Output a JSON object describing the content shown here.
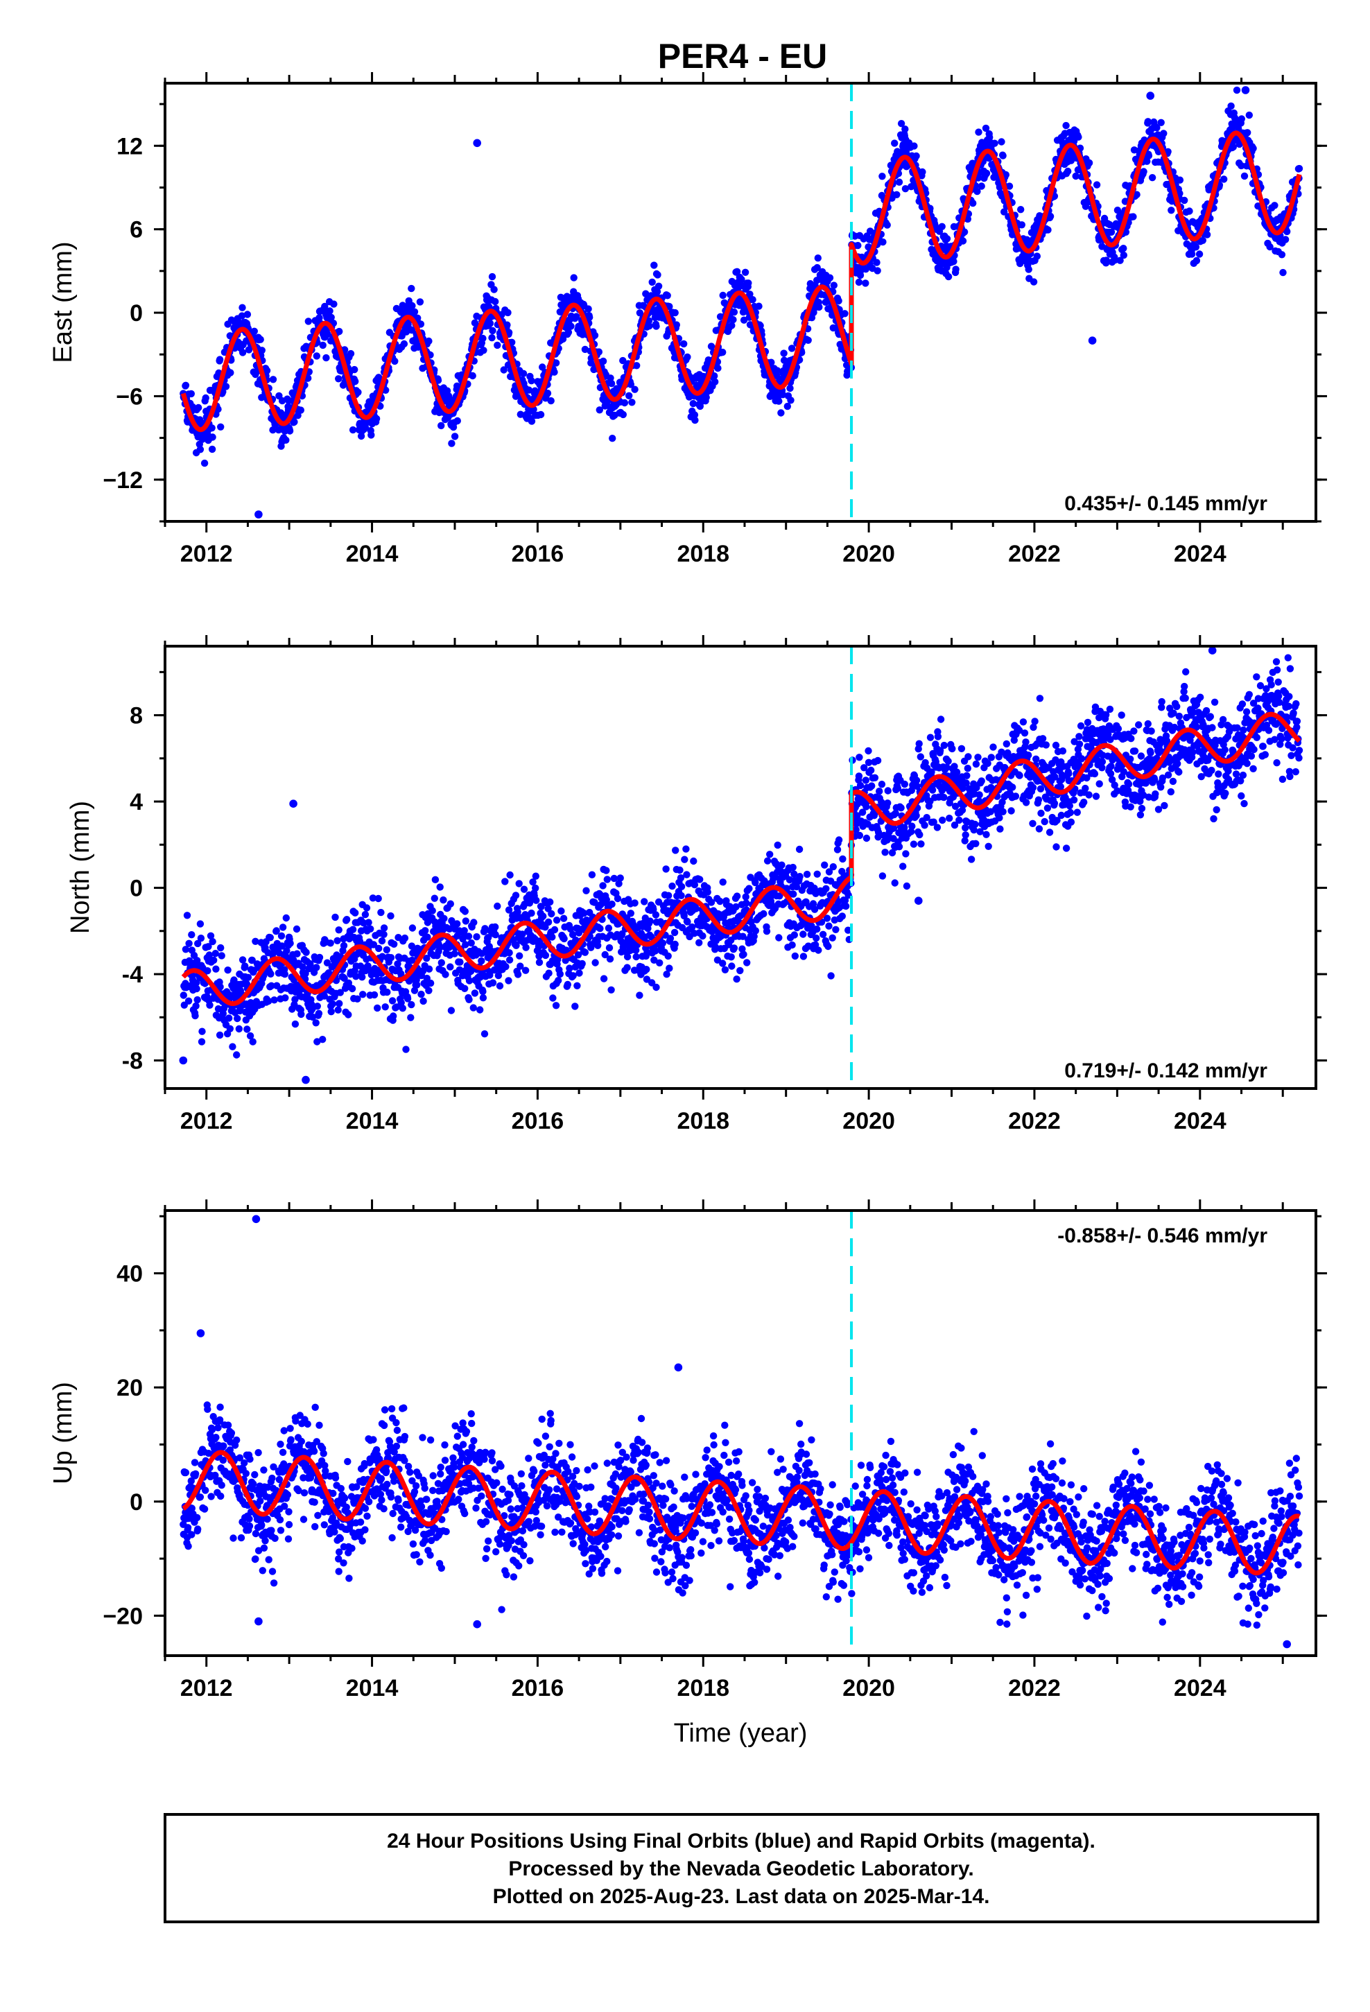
{
  "title": "PER4 - EU",
  "footer": {
    "lines": [
      "24 Hour Positions Using Final Orbits (blue) and Rapid Orbits (magenta).",
      "Processed by the Nevada Geodetic Laboratory.",
      "Plotted on 2025-Aug-23. Last data on 2025-Mar-14."
    ]
  },
  "colors": {
    "points": "#0000ff",
    "model": "#ff0000",
    "offset_line": "#00e5ee",
    "frame": "#000000"
  },
  "chart_data": [
    {
      "type": "scatter",
      "component": "East",
      "ylabel": "East (mm)",
      "xlabel": "",
      "xlim": [
        2011.5,
        2025.4
      ],
      "ylim": [
        -15,
        16.5
      ],
      "xticks": [
        2012,
        2014,
        2016,
        2018,
        2020,
        2022,
        2024
      ],
      "yticks": [
        -12,
        -6,
        0,
        6,
        12
      ],
      "ytick_labels": [
        "−12",
        "−6",
        "0",
        "6",
        "12"
      ],
      "rate": "0.435+/- 0.145 mm/yr",
      "rate_position": "bottom-right",
      "offset_epoch": 2019.79,
      "data_start": 2011.72,
      "data_end": 2025.2,
      "model": {
        "segments": [
          {
            "start": 2011.72,
            "end": 2019.79,
            "baseline_at_start": -5.0,
            "slope": 0.435,
            "amplitude": 3.5,
            "phase": -1.15
          },
          {
            "start": 2019.79,
            "end": 2025.2,
            "baseline_at_start": 7.2,
            "slope": 0.435,
            "amplitude": 3.7,
            "phase": -1.15
          }
        ],
        "noise_sd": 0.9
      },
      "outliers": [
        [
          2015.27,
          12.2
        ],
        [
          2012.63,
          -14.5
        ],
        [
          2022.7,
          -2.0
        ],
        [
          2024.55,
          16.0
        ],
        [
          2023.4,
          15.6
        ]
      ]
    },
    {
      "type": "scatter",
      "component": "North",
      "ylabel": "North (mm)",
      "xlabel": "",
      "xlim": [
        2011.5,
        2025.4
      ],
      "ylim": [
        -9.3,
        11.2
      ],
      "xticks": [
        2012,
        2014,
        2016,
        2018,
        2020,
        2022,
        2024
      ],
      "yticks": [
        -8,
        -4,
        0,
        4,
        8
      ],
      "ytick_labels": [
        "-8",
        "-4",
        "0",
        "4",
        "8"
      ],
      "rate": "0.719+/- 0.142 mm/yr",
      "rate_position": "bottom-right",
      "offset_epoch": 2019.79,
      "data_start": 2011.72,
      "data_end": 2025.2,
      "model": {
        "segments": [
          {
            "start": 2011.72,
            "end": 2019.79,
            "baseline_at_start": -4.8,
            "slope": 0.55,
            "amplitude": 0.9,
            "phase": 2.6
          },
          {
            "start": 2019.79,
            "end": 2025.2,
            "baseline_at_start": 3.5,
            "slope": 0.72,
            "amplitude": 0.9,
            "phase": 2.6
          }
        ],
        "noise_sd": 1.05
      },
      "outliers": [
        [
          2013.05,
          3.9
        ],
        [
          2011.72,
          -8.0
        ],
        [
          2013.2,
          -8.9
        ],
        [
          2024.15,
          11.0
        ],
        [
          2020.6,
          -0.6
        ]
      ]
    },
    {
      "type": "scatter",
      "component": "Up",
      "ylabel": "Up (mm)",
      "xlabel": "Time (year)",
      "xlim": [
        2011.5,
        2025.4
      ],
      "ylim": [
        -27,
        51
      ],
      "xticks": [
        2012,
        2014,
        2016,
        2018,
        2020,
        2022,
        2024
      ],
      "yticks": [
        -20,
        0,
        20,
        40
      ],
      "ytick_labels": [
        "−20",
        "0",
        "20",
        "40"
      ],
      "rate": "-0.858+/- 0.546 mm/yr",
      "rate_position": "top-right",
      "offset_epoch": 2019.79,
      "data_start": 2011.72,
      "data_end": 2025.2,
      "model": {
        "segments": [
          {
            "start": 2011.72,
            "end": 2025.2,
            "baseline_at_start": 3.8,
            "slope": -0.858,
            "amplitude": 5.2,
            "phase": 0.45
          }
        ],
        "noise_sd": 4.5
      },
      "outliers": [
        [
          2012.6,
          49.5
        ],
        [
          2011.93,
          29.5
        ],
        [
          2012.63,
          -21.0
        ],
        [
          2015.27,
          -21.5
        ],
        [
          2017.7,
          23.5
        ],
        [
          2025.05,
          -25.0
        ]
      ]
    }
  ]
}
